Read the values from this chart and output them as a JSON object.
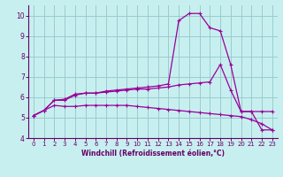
{
  "xlabel": "Windchill (Refroidissement éolien,°C)",
  "bg_color": "#c8eff0",
  "line_color": "#990099",
  "grid_color": "#99cccc",
  "axis_color": "#660066",
  "xlim": [
    -0.5,
    23.5
  ],
  "ylim": [
    4,
    10.5
  ],
  "yticks": [
    4,
    5,
    6,
    7,
    8,
    9,
    10
  ],
  "xticks": [
    0,
    1,
    2,
    3,
    4,
    5,
    6,
    7,
    8,
    9,
    10,
    11,
    12,
    13,
    14,
    15,
    16,
    17,
    18,
    19,
    20,
    21,
    22,
    23
  ],
  "line1_x": [
    0,
    1,
    2,
    3,
    4,
    5,
    6,
    7,
    8,
    9,
    10,
    11,
    12,
    13,
    14,
    15,
    16,
    17,
    18,
    19,
    20,
    21,
    22,
    23
  ],
  "line1_y": [
    5.1,
    5.35,
    5.85,
    5.9,
    6.15,
    6.2,
    6.2,
    6.3,
    6.35,
    6.4,
    6.45,
    6.5,
    6.55,
    6.65,
    9.75,
    10.1,
    10.1,
    9.4,
    9.25,
    7.6,
    5.3,
    5.3,
    4.4,
    4.4
  ],
  "line2_x": [
    0,
    1,
    2,
    3,
    4,
    5,
    6,
    7,
    8,
    9,
    10,
    11,
    12,
    13,
    14,
    15,
    16,
    17,
    18,
    19,
    20,
    21,
    22,
    23
  ],
  "line2_y": [
    5.1,
    5.35,
    5.85,
    5.85,
    6.1,
    6.2,
    6.2,
    6.25,
    6.3,
    6.35,
    6.4,
    6.4,
    6.45,
    6.5,
    6.6,
    6.65,
    6.7,
    6.75,
    7.6,
    6.35,
    5.3,
    5.3,
    5.3,
    5.3
  ],
  "line3_x": [
    0,
    1,
    2,
    3,
    4,
    5,
    6,
    7,
    8,
    9,
    10,
    11,
    12,
    13,
    14,
    15,
    16,
    17,
    18,
    19,
    20,
    21,
    22,
    23
  ],
  "line3_y": [
    5.1,
    5.35,
    5.6,
    5.55,
    5.55,
    5.6,
    5.6,
    5.6,
    5.6,
    5.6,
    5.55,
    5.5,
    5.45,
    5.4,
    5.35,
    5.3,
    5.25,
    5.2,
    5.15,
    5.1,
    5.05,
    4.9,
    4.7,
    4.4
  ]
}
